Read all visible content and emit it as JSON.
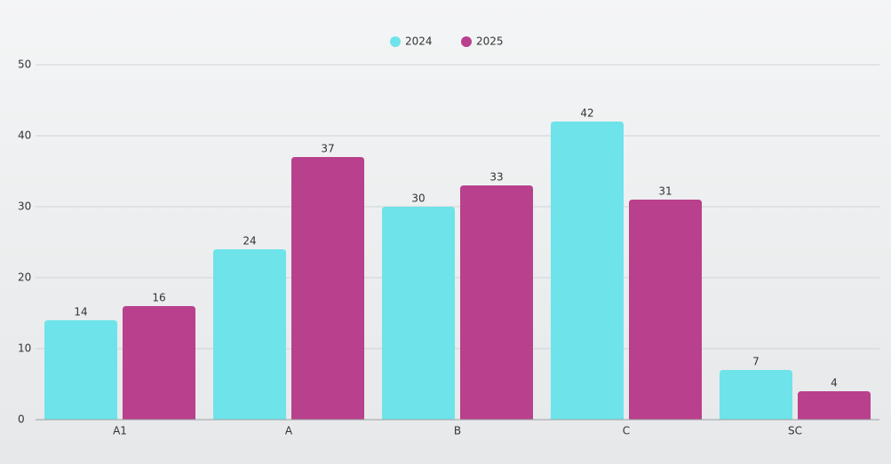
{
  "chart_data": {
    "type": "bar",
    "categories": [
      "A1",
      "A",
      "B",
      "C",
      "SC"
    ],
    "series": [
      {
        "name": "2024",
        "color": "#6ee3ea",
        "values": [
          14,
          24,
          30,
          42,
          7
        ]
      },
      {
        "name": "2025",
        "color": "#b9408c",
        "values": [
          16,
          37,
          33,
          31,
          4
        ]
      }
    ],
    "ylim": [
      0,
      50
    ],
    "yticks": [
      0,
      10,
      20,
      30,
      40,
      50
    ],
    "grid": true,
    "legend": "top"
  }
}
